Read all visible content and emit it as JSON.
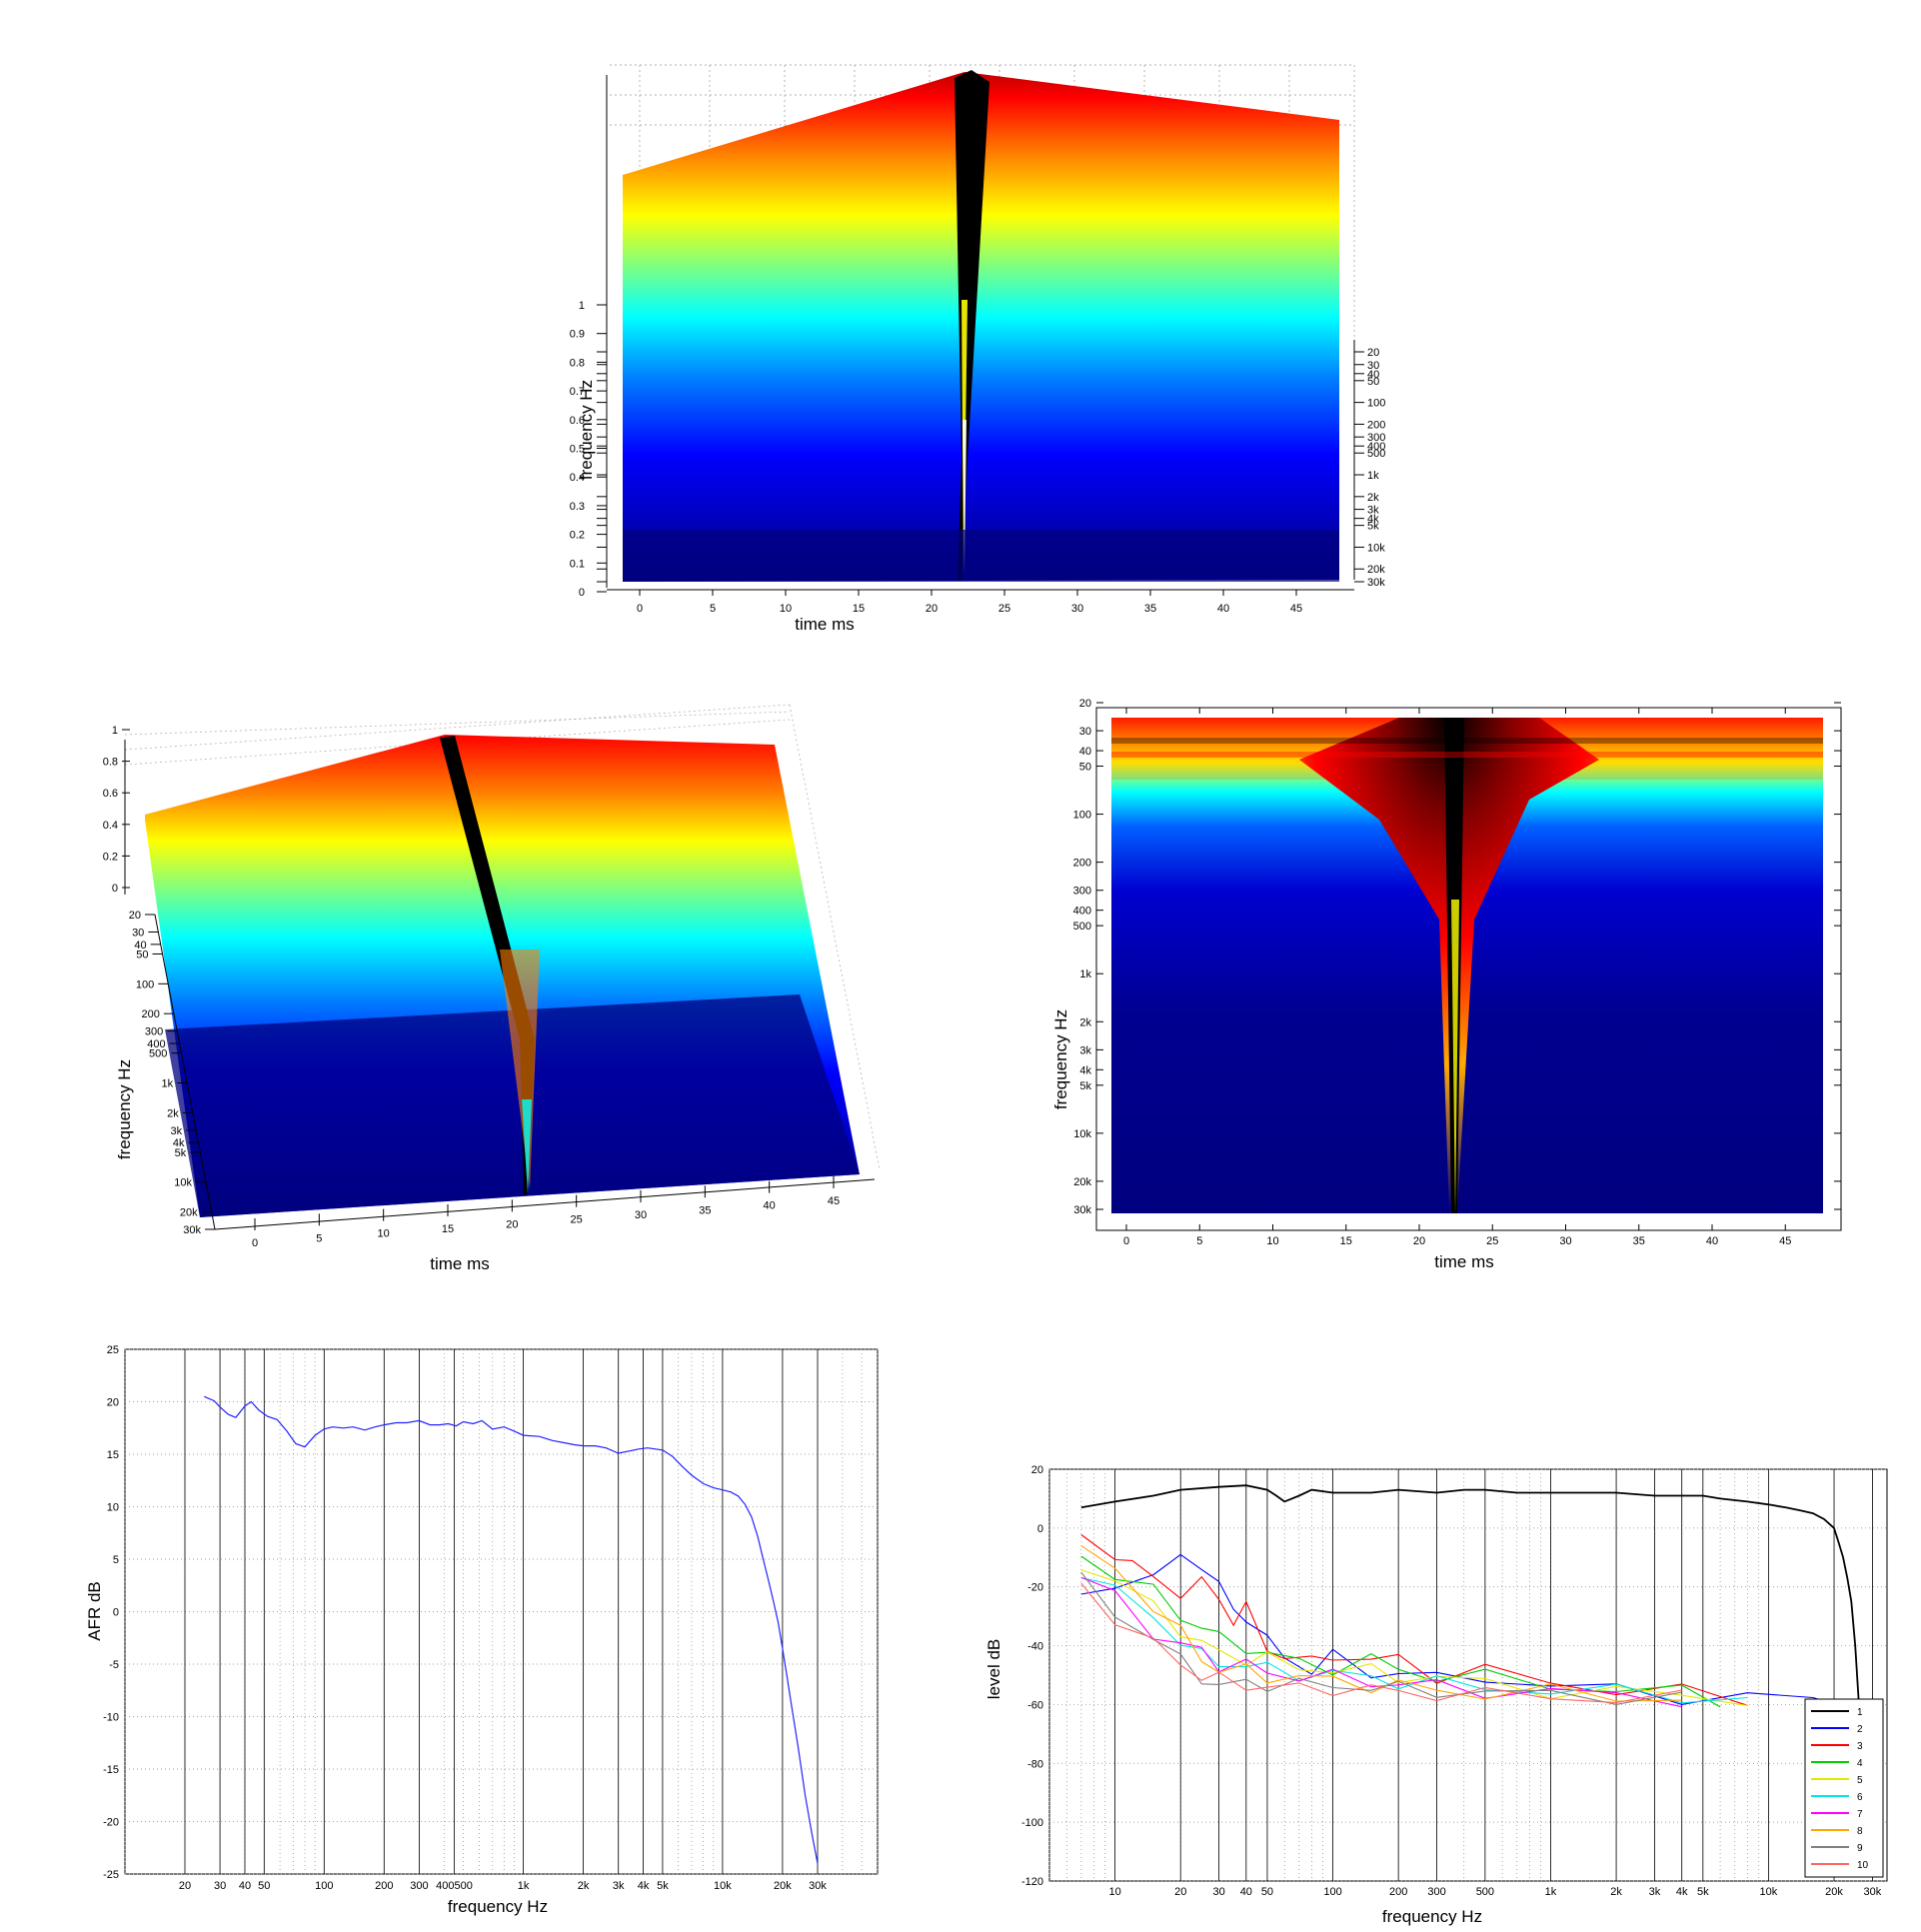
{
  "colors": {
    "jet_stops": [
      "#00007f",
      "#0000ff",
      "#007fff",
      "#00ffff",
      "#7fff7f",
      "#ffff00",
      "#ff7f00",
      "#ff0000",
      "#7f0000",
      "#000000"
    ],
    "afr_line": "#2323ff"
  },
  "chart_data": [
    {
      "id": "waterfall-front",
      "type": "heatmap",
      "subtype": "3d-surface",
      "xlabel": "time   ms",
      "ylabel": "frequency   Hz",
      "x_ticks": [
        "0",
        "5",
        "10",
        "15",
        "20",
        "25",
        "30",
        "35",
        "40",
        "45"
      ],
      "z_ticks": [
        "0",
        "0.1",
        "0.2",
        "0.3",
        "0.4",
        "0.5",
        "0.6",
        "0.7",
        "0.8",
        "0.9",
        "1"
      ],
      "freq_ticks": [
        "20",
        "30",
        "40",
        "50",
        "100",
        "200",
        "300",
        "400",
        "4k",
        "500",
        "1k",
        "2k",
        "3k",
        "5k",
        "10k",
        "20k",
        "30k"
      ],
      "xlim": [
        -1,
        48
      ],
      "zlim": [
        0,
        1
      ],
      "impulse_time_ms": 22.5
    },
    {
      "id": "waterfall-angled",
      "type": "heatmap",
      "subtype": "3d-surface",
      "xlabel": "time   ms",
      "ylabel": "frequency   Hz",
      "x_ticks": [
        "0",
        "5",
        "10",
        "15",
        "20",
        "25",
        "30",
        "35",
        "40",
        "45"
      ],
      "z_ticks": [
        "0",
        "0.2",
        "0.4",
        "0.6",
        "0.8",
        "1"
      ],
      "freq_ticks": [
        "20",
        "30",
        "40",
        "50",
        "100",
        "200",
        "300",
        "400",
        "500",
        "1k",
        "2k",
        "3k",
        "4k",
        "5k",
        "10k",
        "20k",
        "30k"
      ],
      "xlim": [
        -1,
        48
      ],
      "zlim": [
        0,
        1
      ]
    },
    {
      "id": "spectrogram-top",
      "type": "heatmap",
      "xlabel": "time   ms",
      "ylabel": "frequency   Hz",
      "x_ticks": [
        "0",
        "5",
        "10",
        "15",
        "20",
        "25",
        "30",
        "35",
        "40",
        "45"
      ],
      "y_ticks": [
        "20",
        "30",
        "40",
        "50",
        "100",
        "200",
        "300",
        "400",
        "500",
        "1k",
        "2k",
        "3k",
        "4k",
        "5k",
        "10k",
        "20k",
        "30k"
      ],
      "xlim": [
        -1,
        48
      ],
      "ylim": [
        20,
        30000
      ],
      "impulse_time_ms": 22.5
    },
    {
      "id": "afr",
      "type": "line",
      "xlabel": "frequency   Hz",
      "ylabel": "AFR dB",
      "x_scale": "log",
      "xlim": [
        10,
        60000
      ],
      "ylim": [
        -25,
        25
      ],
      "x_ticks": [
        "20",
        "30",
        "40",
        "50",
        "100",
        "200",
        "300",
        "400500",
        "1k",
        "2k",
        "3k",
        "4k",
        "5k",
        "10k",
        "20k",
        "30k"
      ],
      "y_ticks": [
        "-25",
        "-20",
        "-15",
        "-10",
        "-5",
        "0",
        "5",
        "10",
        "15",
        "20",
        "25"
      ],
      "grid": true,
      "series": [
        {
          "x": [
            25,
            28,
            30,
            33,
            36,
            40,
            43,
            47,
            52,
            58,
            65,
            72,
            80,
            90,
            100,
            110,
            125,
            140,
            160,
            180,
            200,
            230,
            260,
            300,
            340,
            380,
            420,
            460,
            500,
            560,
            620,
            700,
            800,
            900,
            1000,
            1200,
            1400,
            1600,
            1800,
            2000,
            2300,
            2600,
            3000,
            3400,
            3800,
            4200,
            4600,
            5000,
            5600,
            6300,
            7000,
            8000,
            9000,
            10000,
            11000,
            12000,
            13000,
            14000,
            15000,
            16000,
            17000,
            18000,
            19000,
            20000,
            21000,
            22000,
            24000,
            26000,
            28000,
            30000
          ],
          "y": [
            20.5,
            20.1,
            19.5,
            18.8,
            18.5,
            19.6,
            20.0,
            19.2,
            18.6,
            18.3,
            17.2,
            16.0,
            15.7,
            16.8,
            17.4,
            17.6,
            17.5,
            17.6,
            17.3,
            17.6,
            17.8,
            18.0,
            18.0,
            18.2,
            17.8,
            17.8,
            17.9,
            17.7,
            18.1,
            17.9,
            18.2,
            17.4,
            17.6,
            17.2,
            16.8,
            16.7,
            16.3,
            16.1,
            15.9,
            15.8,
            15.8,
            15.6,
            15.1,
            15.3,
            15.5,
            15.6,
            15.5,
            15.4,
            14.8,
            13.8,
            13.0,
            12.2,
            11.8,
            11.6,
            11.4,
            11.0,
            10.2,
            9.0,
            7.2,
            5.0,
            3.0,
            1.0,
            -1.0,
            -3.5,
            -6.0,
            -8.5,
            -13.0,
            -17.5,
            -21.0,
            -24.0
          ]
        }
      ]
    },
    {
      "id": "level",
      "type": "line",
      "xlabel": "frequency   Hz",
      "ylabel": "level dB",
      "x_scale": "log",
      "xlim": [
        5,
        35000
      ],
      "ylim": [
        -120,
        20
      ],
      "x_ticks": [
        "10",
        "20",
        "30",
        "40",
        "50",
        "100",
        "200",
        "300",
        "500",
        "1k",
        "2k",
        "3k",
        "4k",
        "5k",
        "10k",
        "20k",
        "30k"
      ],
      "y_ticks": [
        "20",
        "0",
        "-20",
        "-40",
        "-60",
        "-80",
        "-100",
        "-120"
      ],
      "grid": true,
      "legend_position": "bottom-right",
      "series": [
        {
          "name": "1",
          "color": "#000000",
          "x": [
            7,
            10,
            15,
            20,
            30,
            40,
            50,
            55,
            60,
            70,
            80,
            100,
            150,
            200,
            300,
            400,
            500,
            700,
            1000,
            1500,
            2000,
            3000,
            4000,
            5000,
            6000,
            8000,
            10000,
            12000,
            14000,
            16000,
            18000,
            20000,
            21000,
            22000,
            23000,
            24000,
            25000,
            26000
          ],
          "y": [
            7,
            9,
            11,
            13,
            14,
            14.5,
            13,
            11,
            9,
            11,
            13,
            12,
            12,
            13,
            12,
            13,
            13,
            12,
            12,
            12,
            12,
            11,
            11,
            11,
            10,
            9,
            8,
            7,
            6,
            5,
            3,
            0,
            -5,
            -10,
            -17,
            -25,
            -40,
            -60
          ]
        },
        {
          "name": "2",
          "color": "#0000ff",
          "x": [
            7,
            10,
            15,
            20,
            25,
            30,
            35,
            40,
            50,
            60,
            80,
            100,
            150,
            200,
            300,
            500,
            1000,
            2000,
            4000,
            8000,
            16000,
            24000
          ],
          "y": [
            -25,
            -20,
            -14,
            -12,
            -12,
            -18,
            -30,
            -29,
            -38,
            -45,
            -47,
            -44,
            -50,
            -48,
            -52,
            -50,
            -54,
            -55,
            -57,
            -58,
            -58,
            -59
          ]
        },
        {
          "name": "3",
          "color": "#ff0000",
          "x": [
            7,
            10,
            12,
            15,
            20,
            25,
            30,
            35,
            40,
            50,
            60,
            80,
            100,
            150,
            200,
            300,
            500,
            1000,
            2000,
            4000,
            8000
          ],
          "y": [
            -5,
            -8,
            -12,
            -18,
            -21,
            -19,
            -24,
            -31,
            -28,
            -40,
            -44,
            -46,
            -42,
            -46,
            -44,
            -50,
            -49,
            -52,
            -55,
            -56,
            -58
          ]
        },
        {
          "name": "4",
          "color": "#00cc00",
          "x": [
            7,
            10,
            15,
            20,
            25,
            30,
            40,
            50,
            70,
            100,
            150,
            200,
            300,
            500,
            1000,
            2000,
            4000,
            6000
          ],
          "y": [
            -10,
            -15,
            -22,
            -30,
            -33,
            -38,
            -40,
            -43,
            -46,
            -47,
            -45,
            -48,
            -50,
            -51,
            -53,
            -55,
            -56,
            -58
          ]
        },
        {
          "name": "5",
          "color": "#e6e600",
          "x": [
            7,
            10,
            15,
            20,
            25,
            30,
            40,
            50,
            70,
            100,
            150,
            200,
            300,
            500,
            1000,
            2000,
            4000,
            8000
          ],
          "y": [
            -12,
            -18,
            -27,
            -34,
            -40,
            -42,
            -44,
            -45,
            -47,
            -48,
            -49,
            -50,
            -51,
            -53,
            -55,
            -56,
            -57,
            -58
          ]
        },
        {
          "name": "6",
          "color": "#00e6e6",
          "x": [
            7,
            10,
            15,
            20,
            25,
            30,
            40,
            50,
            70,
            100,
            150,
            200,
            300,
            500,
            1000,
            2000,
            4000,
            8000
          ],
          "y": [
            -14,
            -22,
            -30,
            -38,
            -44,
            -45,
            -47,
            -48,
            -49,
            -50,
            -51,
            -52,
            -53,
            -54,
            -55,
            -56,
            -57,
            -58
          ]
        },
        {
          "name": "7",
          "color": "#ff00ff",
          "x": [
            7,
            10,
            15,
            20,
            25,
            30,
            40,
            50,
            70,
            100,
            150,
            200,
            300,
            500,
            1000,
            2000,
            4000
          ],
          "y": [
            -16,
            -24,
            -35,
            -40,
            -42,
            -46,
            -47,
            -49,
            -50,
            -51,
            -52,
            -53,
            -54,
            -55,
            -56,
            -57,
            -58
          ]
        },
        {
          "name": "8",
          "color": "#ffa500",
          "x": [
            7,
            10,
            15,
            20,
            25,
            30,
            40,
            50,
            70,
            100,
            150,
            200,
            300,
            500,
            1000,
            2000,
            4000
          ],
          "y": [
            -8,
            -14,
            -26,
            -36,
            -44,
            -48,
            -49,
            -50,
            -51,
            -52,
            -53,
            -54,
            -55,
            -56,
            -56,
            -57,
            -58
          ]
        },
        {
          "name": "9",
          "color": "#808080",
          "x": [
            7,
            10,
            15,
            20,
            25,
            30,
            40,
            50,
            70,
            100,
            150,
            200,
            300,
            500,
            1000,
            2000,
            4000
          ],
          "y": [
            -18,
            -28,
            -38,
            -45,
            -50,
            -55,
            -52,
            -53,
            -54,
            -53,
            -54,
            -55,
            -55,
            -56,
            -57,
            -57,
            -58
          ]
        },
        {
          "name": "10",
          "color": "#ff6666",
          "x": [
            7,
            10,
            15,
            20,
            25,
            30,
            40,
            50,
            70,
            100,
            150,
            200,
            300,
            500,
            1000,
            2000,
            4000
          ],
          "y": [
            -20,
            -30,
            -40,
            -46,
            -50,
            -52,
            -53,
            -54,
            -55,
            -54,
            -55,
            -56,
            -56,
            -57,
            -57,
            -58,
            -58
          ]
        }
      ]
    }
  ]
}
